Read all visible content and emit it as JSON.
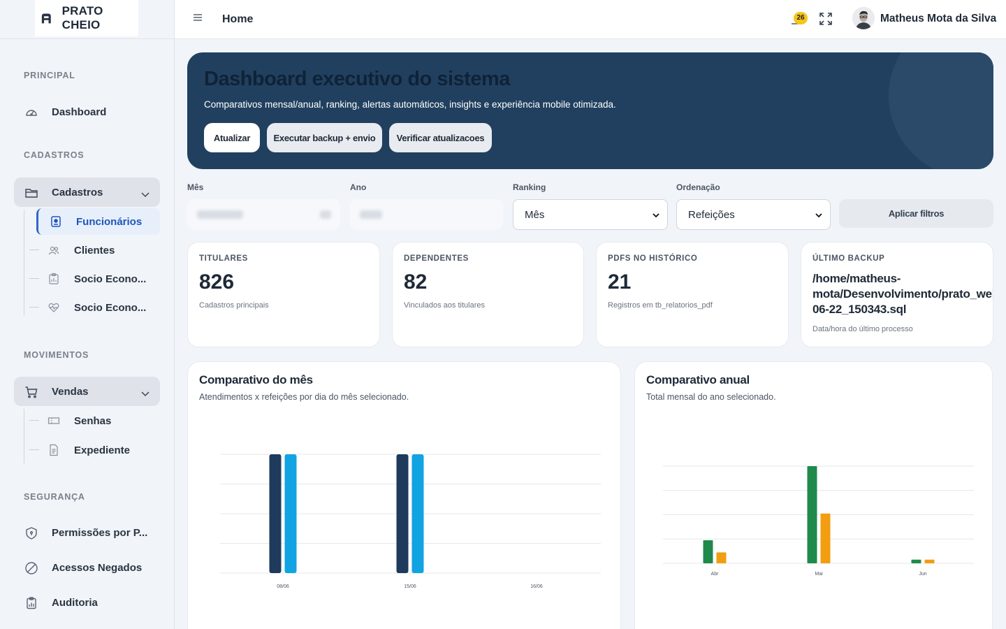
{
  "brand": {
    "name": "PRATO CHEIO"
  },
  "sidebar": {
    "sections": {
      "principal": "PRINCIPAL",
      "cadastros": "CADASTROS",
      "movimentos": "MOVIMENTOS",
      "seguranca": "SEGURANÇA"
    },
    "dashboard": "Dashboard",
    "cadastros": {
      "label": "Cadastros",
      "items": [
        "Funcionários",
        "Clientes",
        "Socio Econo...",
        "Socio Econo..."
      ]
    },
    "vendas": {
      "label": "Vendas",
      "items": [
        "Senhas",
        "Expediente"
      ]
    },
    "seguranca": [
      "Permissões por P...",
      "Acessos Negados",
      "Auditoria"
    ]
  },
  "topbar": {
    "title": "Home",
    "notifications": "26",
    "user": "Matheus Mota da Silva"
  },
  "hero": {
    "title": "Dashboard executivo do sistema",
    "subtitle": "Comparativos mensal/anual, ranking, alertas automáticos, insights e experiência mobile otimizada.",
    "buttons": [
      "Atualizar",
      "Executar backup + envio",
      "Verificar atualizacoes"
    ]
  },
  "filters": {
    "mes_label": "Mês",
    "ano_label": "Ano",
    "ranking_label": "Ranking",
    "ranking_value": "Mês",
    "ordenacao_label": "Ordenação",
    "ordenacao_value": "Refeições",
    "apply": "Aplicar filtros"
  },
  "stats": [
    {
      "key": "TITULARES",
      "value": "826",
      "sub": "Cadastros principais"
    },
    {
      "key": "DEPENDENTES",
      "value": "82",
      "sub": "Vinculados aos titulares"
    },
    {
      "key": "PDFS NO HISTÓRICO",
      "value": "21",
      "sub": "Registros em tb_relatorios_pdf"
    },
    {
      "key": "ÚLTIMO BACKUP",
      "path_lines": [
        "/home/matheus-",
        "mota/Desenvolvimento/prato_web/s",
        "06-22_150343.sql"
      ],
      "sub": "Data/hora do último processo"
    }
  ],
  "panels": {
    "month": {
      "title": "Comparativo do mês",
      "subtitle": "Atendimentos x refeições por dia do mês selecionado."
    },
    "year": {
      "title": "Comparativo anual",
      "subtitle": "Total mensal do ano selecionado."
    }
  },
  "colors": {
    "hero_bg": "#21405f",
    "series_dark": "#1e3a5c",
    "series_blue": "#12a3e3",
    "series_green": "#1f8a4c",
    "series_orange": "#f29e10"
  },
  "chart_data": [
    {
      "type": "bar",
      "categories": [
        "08/06",
        "15/06",
        "16/06"
      ],
      "series": [
        {
          "values": [
            4,
            4,
            0
          ]
        },
        {
          "values": [
            4,
            4,
            0
          ]
        }
      ],
      "ylim": [
        0,
        4
      ],
      "grid": true
    },
    {
      "type": "bar",
      "categories": [
        "Abr",
        "Mai",
        "Jun"
      ],
      "series": [
        {
          "values": [
            19,
            80,
            3
          ]
        },
        {
          "values": [
            9,
            41,
            3
          ]
        }
      ],
      "ylim": [
        0,
        80
      ],
      "grid": true
    }
  ]
}
